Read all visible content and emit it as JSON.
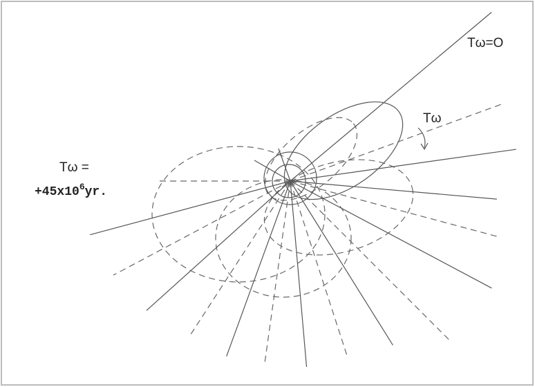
{
  "labels": {
    "top": "Tω=O",
    "right": "Tω",
    "left_line1": "Tω =",
    "left_line2_base": "+45x10",
    "left_line2_sup": "6",
    "left_line2_end": "yr."
  }
}
